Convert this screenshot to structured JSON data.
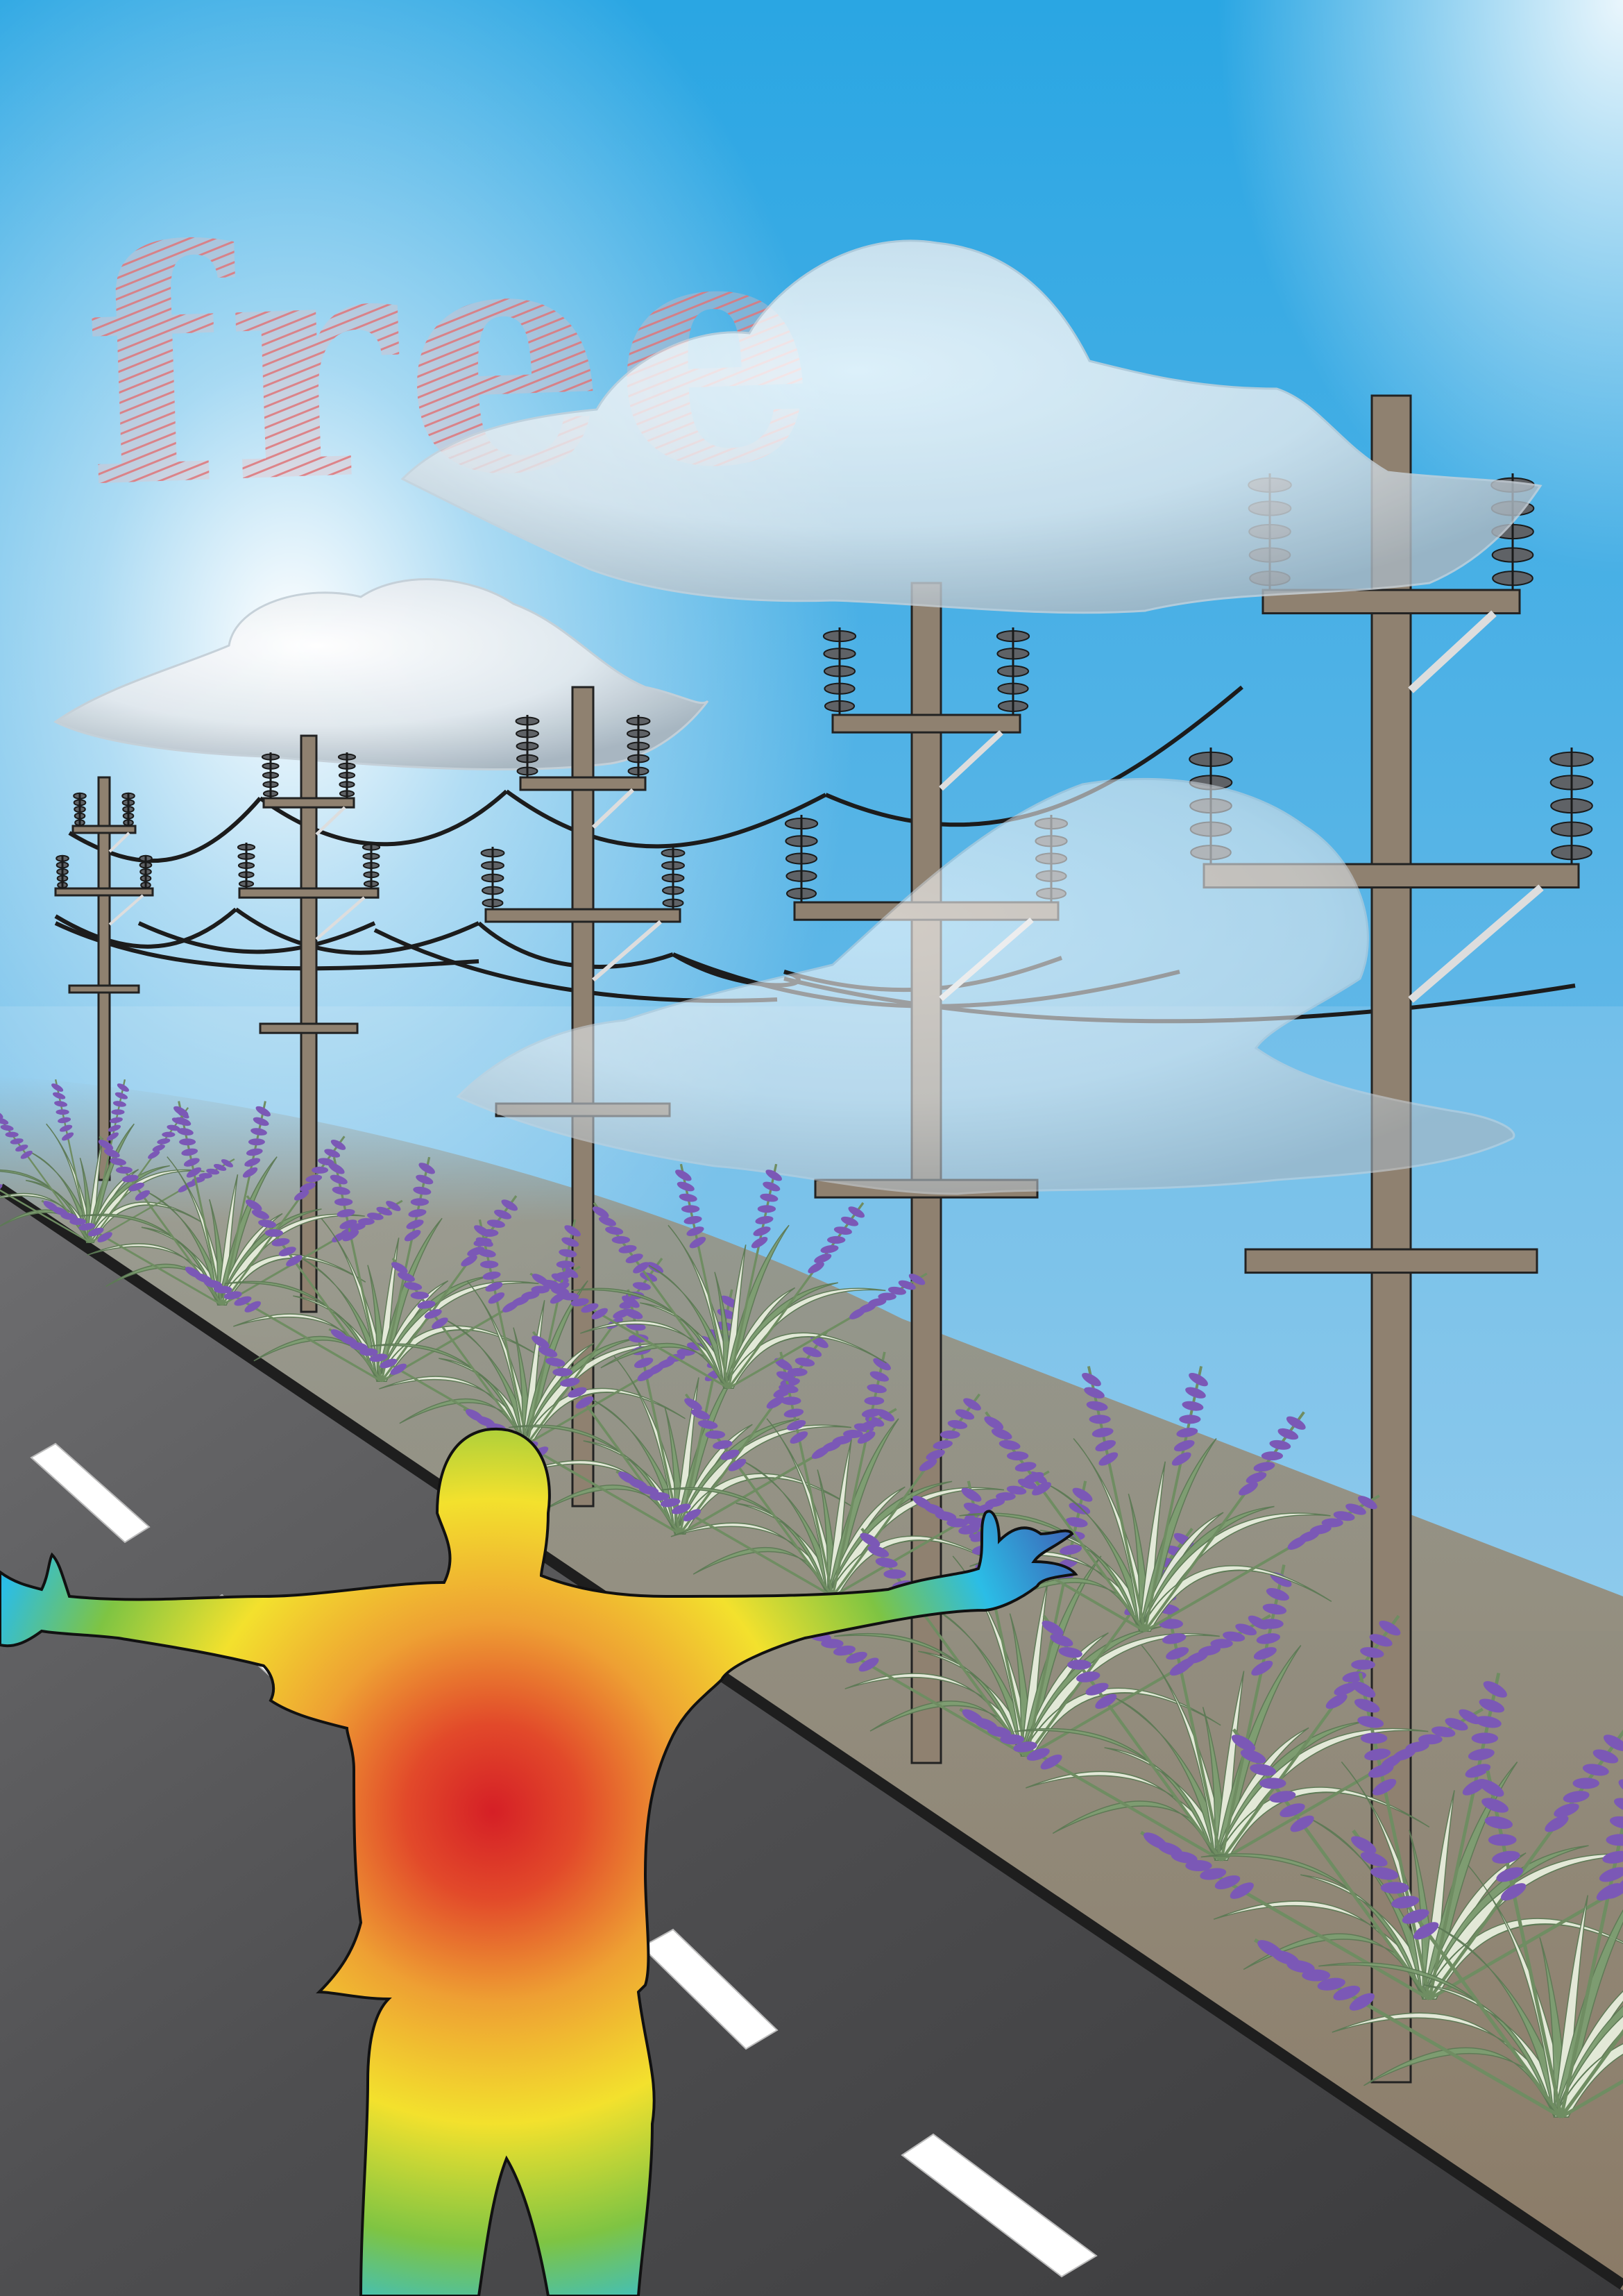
{
  "poster": {
    "sky_word": "free"
  },
  "colors": {
    "sky_top": "#2aa6e3",
    "sky_bottom": "#8ec9ec",
    "ground": "#8b7c68",
    "road": "#4a4a4c",
    "pole": "#8f8170",
    "cloud": "#e6edf2",
    "grass": "#7d9e71",
    "lavender": "#7b58b6",
    "heat_core": "#d72027",
    "heat_outer": "#3f5bb0"
  },
  "icons": {
    "figure": "person-outstretched-arms-icon",
    "pole": "utility-pole-icon",
    "insulator": "insulator-icon",
    "cloud": "cloud-icon",
    "plant": "lavender-bush-icon"
  }
}
